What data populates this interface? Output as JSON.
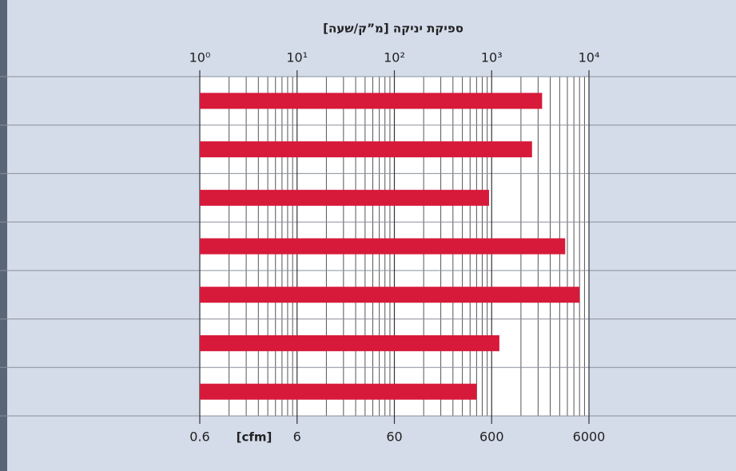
{
  "chart_data": {
    "type": "bar",
    "orientation": "horizontal",
    "title": "ספיקת יניקה [מ”ק/שעה]",
    "categories": [
      null,
      null,
      null,
      null,
      null,
      null,
      null
    ],
    "values": [
      3300,
      2600,
      940,
      5700,
      8000,
      1200,
      700
    ],
    "color": "#d71a3a",
    "xscale": "log",
    "xlim": [
      1,
      10000
    ],
    "xticks": [
      {
        "value": 1,
        "label": "10⁰"
      },
      {
        "value": 10,
        "label": "10¹"
      },
      {
        "value": 100,
        "label": "10²"
      },
      {
        "value": 1000,
        "label": "10³"
      },
      {
        "value": 10000,
        "label": "10⁴"
      }
    ],
    "x2label": "[cfm]",
    "x2lim": [
      0.6,
      6000
    ],
    "x2ticks": [
      0.6,
      6,
      60,
      600,
      6000
    ],
    "grid": true
  }
}
